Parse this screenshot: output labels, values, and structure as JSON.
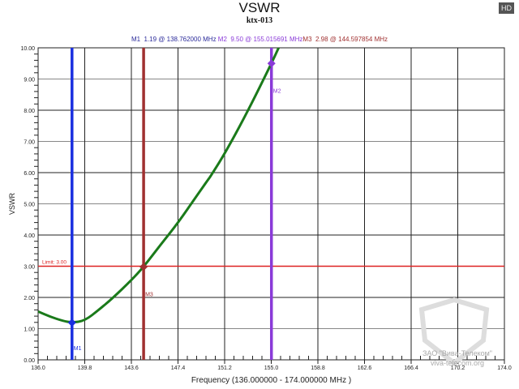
{
  "badge": "HD",
  "chart_data": {
    "type": "line",
    "title": "VSWR",
    "subtitle": "ktx-013",
    "xlabel": "Frequency (136.000000 - 174.000000 MHz )",
    "ylabel": "VSWR",
    "xlim": [
      136.0,
      174.0
    ],
    "ylim": [
      0,
      10
    ],
    "xticks": [
      "136.0",
      "139.8",
      "143.6",
      "147.4",
      "151.2",
      "155.0",
      "158.8",
      "162.6",
      "166.4",
      "170.2",
      "174.0"
    ],
    "yticks": [
      "0.00",
      "1.00",
      "2.00",
      "3.00",
      "4.00",
      "5.00",
      "6.00",
      "7.00",
      "8.00",
      "9.00",
      "10.00"
    ],
    "grid": true,
    "series_color": "#1a7a1a",
    "x": [
      136.0,
      137.0,
      138.0,
      138.762,
      139.8,
      141.0,
      142.0,
      143.6,
      144.598,
      146.0,
      147.4,
      149.0,
      149.9,
      150.0,
      151.2,
      153.0,
      155.016,
      155.6
    ],
    "y": [
      1.55,
      1.38,
      1.25,
      1.19,
      1.25,
      1.62,
      1.95,
      2.55,
      2.98,
      3.7,
      4.39,
      5.3,
      5.8,
      5.85,
      6.6,
      7.9,
      9.5,
      10.0
    ],
    "limit": {
      "value": 3.0,
      "label": "Limit: 3.00",
      "color": "#dd2222"
    },
    "markers": [
      {
        "name": "M1",
        "freq": 138.762,
        "value": 1.19,
        "color": "#1a2fe0",
        "readout": "M1  1.19 @ 138.762000 MHz"
      },
      {
        "name": "M2",
        "freq": 155.015691,
        "value": 9.5,
        "color": "#8a3ad8",
        "readout": "M2  9.50 @ 155.015691 MHz"
      },
      {
        "name": "M3",
        "freq": 144.597854,
        "value": 2.98,
        "color": "#a03030",
        "readout": "M3  2.98 @ 144.597854 MHz"
      }
    ]
  },
  "watermark": {
    "line1": "ЗАО \"Вива-Телеком\"",
    "line2": "viva-telecom.org"
  }
}
